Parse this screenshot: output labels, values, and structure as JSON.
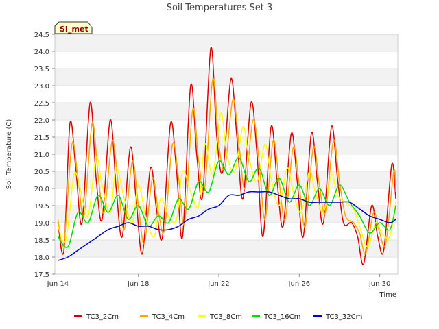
{
  "chart_data": {
    "type": "line",
    "title": "Soil Temperatures Set 3",
    "xlabel": "Time",
    "ylabel": "Soil Temperature (C)",
    "site_label": "SI_met",
    "x_unit": "days from Jun 14",
    "xlim": [
      -0.15,
      16.9
    ],
    "ylim": [
      17.5,
      24.5
    ],
    "y_ticks": [
      17.5,
      18.0,
      18.5,
      19.0,
      19.5,
      20.0,
      20.5,
      21.0,
      21.5,
      22.0,
      22.5,
      23.0,
      23.5,
      24.0,
      24.5
    ],
    "x_ticks": [
      {
        "value": 0,
        "label": "Jun 14"
      },
      {
        "value": 4,
        "label": "Jun 18"
      },
      {
        "value": 8,
        "label": "Jun 22"
      },
      {
        "value": 12,
        "label": "Jun 26"
      },
      {
        "value": 16,
        "label": "Jun 30"
      }
    ],
    "grid": "horizontal bands",
    "legend_position": "bottom",
    "series": [
      {
        "name": "TC3_2Cm",
        "color": "#dd0000",
        "points": [
          [
            0.0,
            19.0
          ],
          [
            0.3,
            18.2
          ],
          [
            0.6,
            21.9
          ],
          [
            0.9,
            20.5
          ],
          [
            1.2,
            19.0
          ],
          [
            1.6,
            22.5
          ],
          [
            1.9,
            20.3
          ],
          [
            2.2,
            19.1
          ],
          [
            2.6,
            22.0
          ],
          [
            2.9,
            20.0
          ],
          [
            3.2,
            18.6
          ],
          [
            3.6,
            21.2
          ],
          [
            3.9,
            19.6
          ],
          [
            4.2,
            18.1
          ],
          [
            4.6,
            20.6
          ],
          [
            4.9,
            19.4
          ],
          [
            5.2,
            18.6
          ],
          [
            5.6,
            21.9
          ],
          [
            5.9,
            20.5
          ],
          [
            6.2,
            18.6
          ],
          [
            6.6,
            23.0
          ],
          [
            6.9,
            21.0
          ],
          [
            7.2,
            19.8
          ],
          [
            7.6,
            24.1
          ],
          [
            7.9,
            21.5
          ],
          [
            8.2,
            20.5
          ],
          [
            8.6,
            23.2
          ],
          [
            8.9,
            21.5
          ],
          [
            9.2,
            19.7
          ],
          [
            9.6,
            22.5
          ],
          [
            9.9,
            21.0
          ],
          [
            10.2,
            18.6
          ],
          [
            10.6,
            21.8
          ],
          [
            10.9,
            20.2
          ],
          [
            11.2,
            18.9
          ],
          [
            11.6,
            21.6
          ],
          [
            11.9,
            20.2
          ],
          [
            12.2,
            18.6
          ],
          [
            12.6,
            21.6
          ],
          [
            12.9,
            20.2
          ],
          [
            13.2,
            19.0
          ],
          [
            13.6,
            21.8
          ],
          [
            13.9,
            20.3
          ],
          [
            14.2,
            19.0
          ],
          [
            14.6,
            19.0
          ],
          [
            14.9,
            18.6
          ],
          [
            15.2,
            17.8
          ],
          [
            15.6,
            19.5
          ],
          [
            15.9,
            18.6
          ],
          [
            16.2,
            18.2
          ],
          [
            16.6,
            20.7
          ],
          [
            16.8,
            19.7
          ]
        ]
      },
      {
        "name": "TC3_4Cm",
        "color": "#ffa500",
        "points": [
          [
            0.0,
            19.1
          ],
          [
            0.3,
            18.4
          ],
          [
            0.7,
            21.3
          ],
          [
            1.0,
            20.3
          ],
          [
            1.3,
            19.2
          ],
          [
            1.7,
            21.9
          ],
          [
            2.0,
            20.4
          ],
          [
            2.3,
            19.3
          ],
          [
            2.7,
            21.4
          ],
          [
            3.0,
            20.1
          ],
          [
            3.3,
            18.8
          ],
          [
            3.7,
            20.8
          ],
          [
            4.0,
            19.5
          ],
          [
            4.3,
            18.4
          ],
          [
            4.7,
            20.3
          ],
          [
            5.0,
            19.3
          ],
          [
            5.3,
            18.8
          ],
          [
            5.7,
            21.3
          ],
          [
            6.0,
            20.3
          ],
          [
            6.3,
            19.0
          ],
          [
            6.7,
            22.3
          ],
          [
            7.0,
            20.8
          ],
          [
            7.3,
            20.0
          ],
          [
            7.7,
            23.2
          ],
          [
            8.0,
            21.3
          ],
          [
            8.3,
            20.6
          ],
          [
            8.7,
            22.6
          ],
          [
            9.0,
            21.3
          ],
          [
            9.3,
            20.0
          ],
          [
            9.7,
            22.0
          ],
          [
            10.0,
            20.8
          ],
          [
            10.3,
            19.1
          ],
          [
            10.7,
            21.4
          ],
          [
            11.0,
            20.2
          ],
          [
            11.3,
            19.1
          ],
          [
            11.7,
            21.2
          ],
          [
            12.0,
            20.1
          ],
          [
            12.3,
            18.9
          ],
          [
            12.7,
            21.2
          ],
          [
            13.0,
            20.1
          ],
          [
            13.3,
            19.3
          ],
          [
            13.7,
            21.4
          ],
          [
            14.0,
            20.2
          ],
          [
            14.3,
            19.2
          ],
          [
            14.7,
            19.0
          ],
          [
            15.0,
            18.7
          ],
          [
            15.3,
            18.1
          ],
          [
            15.7,
            19.3
          ],
          [
            16.0,
            18.7
          ],
          [
            16.3,
            18.4
          ],
          [
            16.7,
            20.5
          ],
          [
            16.8,
            19.9
          ]
        ]
      },
      {
        "name": "TC3_8Cm",
        "color": "#ffff00",
        "points": [
          [
            0.0,
            18.9
          ],
          [
            0.4,
            18.5
          ],
          [
            0.8,
            20.4
          ],
          [
            1.1,
            20.0
          ],
          [
            1.5,
            19.2
          ],
          [
            1.9,
            20.9
          ],
          [
            2.2,
            20.1
          ],
          [
            2.6,
            19.3
          ],
          [
            2.9,
            20.6
          ],
          [
            3.3,
            19.7
          ],
          [
            3.7,
            19.0
          ],
          [
            4.0,
            20.1
          ],
          [
            4.4,
            19.1
          ],
          [
            4.8,
            18.6
          ],
          [
            5.1,
            19.7
          ],
          [
            5.5,
            19.2
          ],
          [
            5.9,
            19.1
          ],
          [
            6.2,
            20.5
          ],
          [
            6.6,
            19.9
          ],
          [
            7.0,
            19.5
          ],
          [
            7.3,
            21.3
          ],
          [
            7.7,
            20.4
          ],
          [
            8.1,
            22.2
          ],
          [
            8.4,
            21.0
          ],
          [
            8.8,
            20.5
          ],
          [
            9.2,
            21.8
          ],
          [
            9.5,
            20.9
          ],
          [
            9.9,
            20.2
          ],
          [
            10.3,
            21.3
          ],
          [
            10.6,
            20.3
          ],
          [
            11.0,
            19.5
          ],
          [
            11.4,
            20.6
          ],
          [
            11.7,
            19.9
          ],
          [
            12.1,
            19.3
          ],
          [
            12.5,
            20.5
          ],
          [
            12.8,
            19.9
          ],
          [
            13.2,
            19.3
          ],
          [
            13.6,
            20.4
          ],
          [
            13.9,
            19.8
          ],
          [
            14.3,
            19.6
          ],
          [
            14.7,
            19.4
          ],
          [
            15.0,
            18.9
          ],
          [
            15.4,
            18.3
          ],
          [
            15.8,
            19.0
          ],
          [
            16.1,
            18.7
          ],
          [
            16.5,
            18.6
          ],
          [
            16.8,
            19.6
          ]
        ]
      },
      {
        "name": "TC3_16Cm",
        "color": "#00dd00",
        "points": [
          [
            0.0,
            18.6
          ],
          [
            0.5,
            18.3
          ],
          [
            1.0,
            19.3
          ],
          [
            1.5,
            19.0
          ],
          [
            2.0,
            19.8
          ],
          [
            2.5,
            19.3
          ],
          [
            3.0,
            19.8
          ],
          [
            3.5,
            19.1
          ],
          [
            4.0,
            19.5
          ],
          [
            4.5,
            18.9
          ],
          [
            5.0,
            19.2
          ],
          [
            5.5,
            19.0
          ],
          [
            6.0,
            19.7
          ],
          [
            6.5,
            19.4
          ],
          [
            7.0,
            20.2
          ],
          [
            7.5,
            19.9
          ],
          [
            8.0,
            20.8
          ],
          [
            8.5,
            20.4
          ],
          [
            9.0,
            20.9
          ],
          [
            9.5,
            20.2
          ],
          [
            10.0,
            20.6
          ],
          [
            10.5,
            19.8
          ],
          [
            11.0,
            20.3
          ],
          [
            11.5,
            19.6
          ],
          [
            12.0,
            20.1
          ],
          [
            12.5,
            19.5
          ],
          [
            13.0,
            20.0
          ],
          [
            13.5,
            19.5
          ],
          [
            14.0,
            20.1
          ],
          [
            14.5,
            19.6
          ],
          [
            15.0,
            19.2
          ],
          [
            15.5,
            18.7
          ],
          [
            16.0,
            19.0
          ],
          [
            16.5,
            18.8
          ],
          [
            16.8,
            19.5
          ]
        ]
      },
      {
        "name": "TC3_32Cm",
        "color": "#0000cc",
        "points": [
          [
            0.0,
            17.9
          ],
          [
            0.5,
            18.0
          ],
          [
            1.0,
            18.2
          ],
          [
            1.5,
            18.4
          ],
          [
            2.0,
            18.6
          ],
          [
            2.5,
            18.8
          ],
          [
            3.0,
            18.9
          ],
          [
            3.5,
            19.0
          ],
          [
            4.0,
            18.9
          ],
          [
            4.5,
            18.9
          ],
          [
            5.0,
            18.8
          ],
          [
            5.5,
            18.8
          ],
          [
            6.0,
            18.9
          ],
          [
            6.5,
            19.1
          ],
          [
            7.0,
            19.2
          ],
          [
            7.5,
            19.4
          ],
          [
            8.0,
            19.5
          ],
          [
            8.5,
            19.8
          ],
          [
            9.0,
            19.8
          ],
          [
            9.5,
            19.9
          ],
          [
            10.0,
            19.9
          ],
          [
            10.5,
            19.9
          ],
          [
            11.0,
            19.8
          ],
          [
            11.5,
            19.7
          ],
          [
            12.0,
            19.7
          ],
          [
            12.5,
            19.6
          ],
          [
            13.0,
            19.6
          ],
          [
            13.5,
            19.6
          ],
          [
            14.0,
            19.6
          ],
          [
            14.5,
            19.6
          ],
          [
            15.0,
            19.4
          ],
          [
            15.5,
            19.2
          ],
          [
            16.0,
            19.1
          ],
          [
            16.5,
            19.0
          ],
          [
            16.8,
            19.1
          ]
        ]
      }
    ]
  }
}
